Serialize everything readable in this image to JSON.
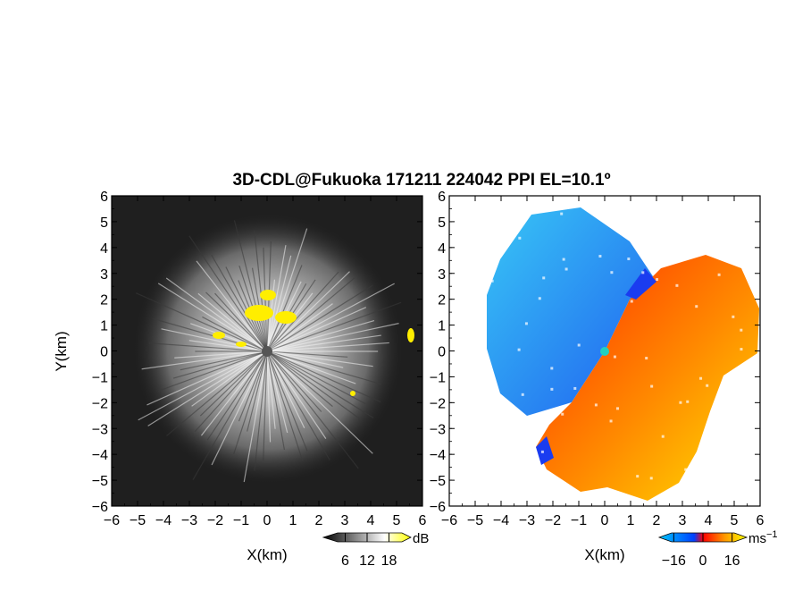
{
  "title": "3D-CDL@Fukuoka 171211 224042 PPI EL=10.1º",
  "chart_data": [
    {
      "type": "heatmap",
      "panel": "left",
      "quantity": "SNR",
      "xlabel": "X(km)",
      "ylabel": "Y(km)",
      "xlim": [
        -6,
        6
      ],
      "ylim": [
        -6,
        6
      ],
      "x_ticks": [
        "−6",
        "−5",
        "−4",
        "−3",
        "−2",
        "−1",
        "0",
        "1",
        "2",
        "3",
        "4",
        "5",
        "6"
      ],
      "y_ticks": [
        "6",
        "5",
        "4",
        "3",
        "2",
        "1",
        "0",
        "−1",
        "−2",
        "−3",
        "−4",
        "−5",
        "−6"
      ],
      "colorbar": {
        "unit": "dB",
        "ticks": [
          "6",
          "12",
          "18"
        ],
        "range": [
          0,
          24
        ],
        "colors": [
          "#000000",
          "#ffffff",
          "#ffff00"
        ]
      },
      "colors": {
        "background": "#1e1e1e",
        "echo": "#d8d8d8",
        "saturated": "#ffee00"
      }
    },
    {
      "type": "heatmap",
      "panel": "right",
      "quantity": "Doppler velocity",
      "xlabel": "X(km)",
      "xlim": [
        -6,
        6
      ],
      "ylim": [
        -6,
        6
      ],
      "x_ticks": [
        "−6",
        "−5",
        "−4",
        "−3",
        "−2",
        "−1",
        "0",
        "1",
        "2",
        "3",
        "4",
        "5",
        "6"
      ],
      "y_ticks": [
        "6",
        "5",
        "4",
        "3",
        "2",
        "1",
        "0",
        "−1",
        "−2",
        "−3",
        "−4",
        "−5",
        "−6"
      ],
      "colorbar": {
        "unit": "ms",
        "unit_exp": "−1",
        "ticks": [
          "−16",
          "0",
          "16"
        ],
        "range": [
          -24,
          24
        ],
        "colors": [
          "#00c8ff",
          "#0040ff",
          "#ff0000",
          "#ff9900",
          "#ffff00"
        ]
      },
      "colors": {
        "negative": "#2a8cf0",
        "positive": "#ff6a10",
        "center": "#20d0c0"
      }
    }
  ]
}
